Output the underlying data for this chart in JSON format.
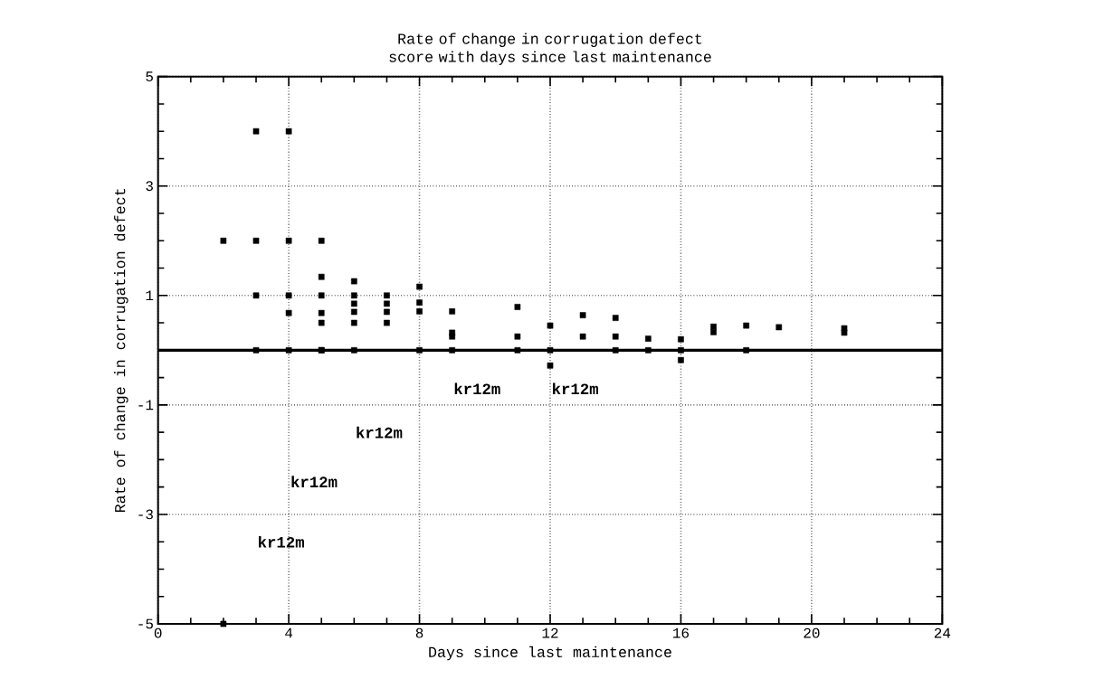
{
  "chart_data": {
    "type": "scatter",
    "title": "Rate of change in corrugation defect score with days since last maintenance",
    "xlabel": "Days since last maintenance",
    "ylabel": "Rate of change in corrugation defect",
    "x": [
      2,
      2,
      3,
      3,
      3,
      3,
      4,
      4,
      4,
      4,
      4,
      5,
      5,
      5,
      5,
      5,
      5,
      5,
      6,
      6,
      6,
      6,
      6,
      6,
      7,
      7,
      7,
      7,
      8,
      8,
      8,
      8,
      9,
      9,
      9,
      9,
      11,
      11,
      11,
      12,
      12,
      12,
      13,
      13,
      14,
      14,
      14,
      15,
      15,
      16,
      16,
      16,
      17,
      17,
      18,
      18,
      19,
      21,
      21
    ],
    "series": [
      {
        "color": "#000000",
        "values": [
          2,
          -5,
          4,
          2,
          1,
          0,
          4,
          2,
          1,
          0.68,
          0,
          2,
          1.34,
          1,
          0.68,
          0.5,
          0,
          0,
          1.26,
          1,
          0.85,
          0.7,
          0.5,
          0,
          1,
          0.85,
          0.7,
          0.5,
          1.16,
          0.87,
          0.71,
          0,
          0.71,
          0.32,
          0.25,
          0,
          0.79,
          0.25,
          0,
          0.45,
          0,
          -0.28,
          0.64,
          0.25,
          0.59,
          0.25,
          0,
          0.21,
          0,
          0.2,
          0,
          -0.18,
          0.43,
          0.33,
          0.45,
          0,
          0.42,
          0.4,
          0.32
        ]
      }
    ],
    "marker": "square",
    "grid": true,
    "xlim": [
      0,
      24
    ],
    "xticks": [
      0,
      4,
      8,
      12,
      16,
      20,
      24
    ],
    "ylim": [
      -5,
      5
    ],
    "yticks": [
      -5,
      -3,
      -1,
      1,
      3,
      5
    ],
    "ref_lines": [
      {
        "axis": "y",
        "value": 0,
        "color": "#000000"
      }
    ],
    "annotations": [
      "kr12m",
      "kr12m",
      "kr12m",
      "kr12m",
      "kr12m"
    ]
  }
}
